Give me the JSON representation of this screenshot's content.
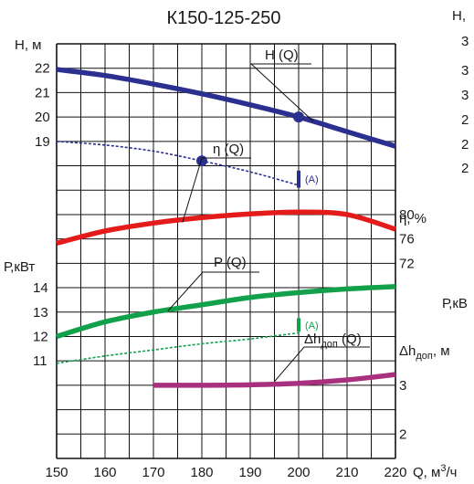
{
  "chart_data": {
    "type": "line",
    "title": "К150-125-250",
    "xlabel": "Q, м³/ч",
    "x_ticks": [
      "150",
      "160",
      "170",
      "180",
      "190",
      "200",
      "210",
      "220"
    ],
    "xlim": [
      150,
      220
    ],
    "axes": {
      "H": {
        "label": "Н, м",
        "ticks": [
          "22",
          "21",
          "20",
          "19"
        ],
        "range": [
          17.6,
          24.1
        ]
      },
      "eta": {
        "label": "η, %",
        "ticks": [
          "80",
          "76",
          "72"
        ],
        "range": [
          72,
          80
        ]
      },
      "P": {
        "label": "Р,кВт",
        "ticks": [
          "14",
          "13",
          "12",
          "11"
        ],
        "range": [
          11,
          14
        ]
      },
      "dh": {
        "label": "Δh доп, м",
        "ticks": [
          "3",
          "2"
        ],
        "range": [
          2,
          3
        ]
      }
    },
    "series": [
      {
        "name": "H (Q)",
        "axis": "H",
        "color": "#2b2f8f",
        "style": "solid",
        "x": [
          150,
          160,
          170,
          180,
          190,
          200,
          210,
          220
        ],
        "y": [
          21.95,
          21.7,
          21.35,
          20.95,
          20.5,
          20.0,
          19.4,
          18.8
        ]
      },
      {
        "name": "",
        "axis": "H",
        "color": "#2b2f8f",
        "style": "dashed",
        "x": [
          150,
          160,
          170,
          180,
          190,
          200
        ],
        "y": [
          19.0,
          18.85,
          18.6,
          18.2,
          17.75,
          17.2
        ]
      },
      {
        "name": "η (Q)",
        "axis": "eta",
        "color": "#e41b1b",
        "style": "solid",
        "x": [
          150,
          160,
          170,
          180,
          190,
          200,
          210,
          220
        ],
        "y": [
          75.3,
          77.3,
          78.6,
          79.5,
          80.1,
          80.4,
          80.0,
          77.6
        ]
      },
      {
        "name": "P (Q)",
        "axis": "P",
        "color": "#12a14a",
        "style": "solid",
        "x": [
          150,
          160,
          170,
          180,
          190,
          200,
          210,
          220
        ],
        "y": [
          12.0,
          12.6,
          13.0,
          13.3,
          13.6,
          13.8,
          13.95,
          14.05
        ]
      },
      {
        "name": "",
        "axis": "P",
        "color": "#12a14a",
        "style": "dashed",
        "x": [
          150,
          160,
          170,
          180,
          190,
          200
        ],
        "y": [
          10.9,
          11.2,
          11.45,
          11.7,
          11.9,
          12.15
        ]
      },
      {
        "name": "Δh доп (Q)",
        "axis": "dh",
        "color": "#a8307f",
        "style": "solid",
        "x": [
          170,
          180,
          190,
          200,
          210,
          220
        ],
        "y": [
          3.0,
          3.0,
          3.01,
          3.04,
          3.11,
          3.22
        ]
      }
    ],
    "points": [
      {
        "axis": "H",
        "x": 200,
        "y": 20.0,
        "color": "#2b2f8f"
      },
      {
        "axis": "H",
        "x": 180,
        "y": 18.2,
        "color": "#2b2f8f"
      }
    ],
    "markers": [
      {
        "label": "(A)",
        "axis": "H",
        "x": 200,
        "y_from": 17.1,
        "y_to": 17.8,
        "color": "#2b2f8f"
      },
      {
        "label": "(A)",
        "axis": "P",
        "x": 200,
        "y_from": 12.2,
        "y_to": 12.75,
        "color": "#12a14a"
      }
    ],
    "grid": true,
    "partial_right_panel": {
      "y_label": "Н,",
      "p_label": "Р,кВ"
    }
  }
}
